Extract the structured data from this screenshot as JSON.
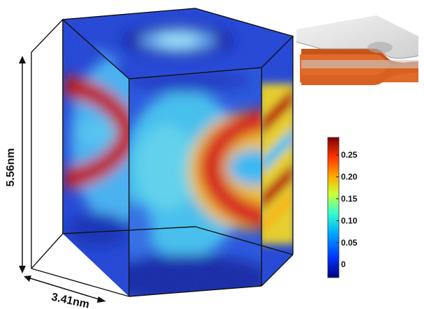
{
  "dimensions": {
    "height_label": "5.56nm",
    "width_label": "3.41nm"
  },
  "colorbar": {
    "ticks": [
      {
        "value": 0.25,
        "label": "0.25"
      },
      {
        "value": 0.2,
        "label": "0.20"
      },
      {
        "value": 0.15,
        "label": "0.15"
      },
      {
        "value": 0.1,
        "label": "0.10"
      },
      {
        "value": 0.05,
        "label": "0.05"
      },
      {
        "value": 0.0,
        "label": "0"
      }
    ],
    "range": [
      -0.03,
      0.29
    ],
    "colors": [
      "#00007f",
      "#0033ff",
      "#00aaff",
      "#33ffcc",
      "#ccff33",
      "#ffaa00",
      "#ff3300",
      "#800000"
    ]
  },
  "colors": {
    "field_low": "#1530c8",
    "field_mid": "#40c8f0",
    "field_high": "#c81010",
    "inset_layer": "#e06a2a",
    "inset_surface": "#e4e4e4"
  }
}
